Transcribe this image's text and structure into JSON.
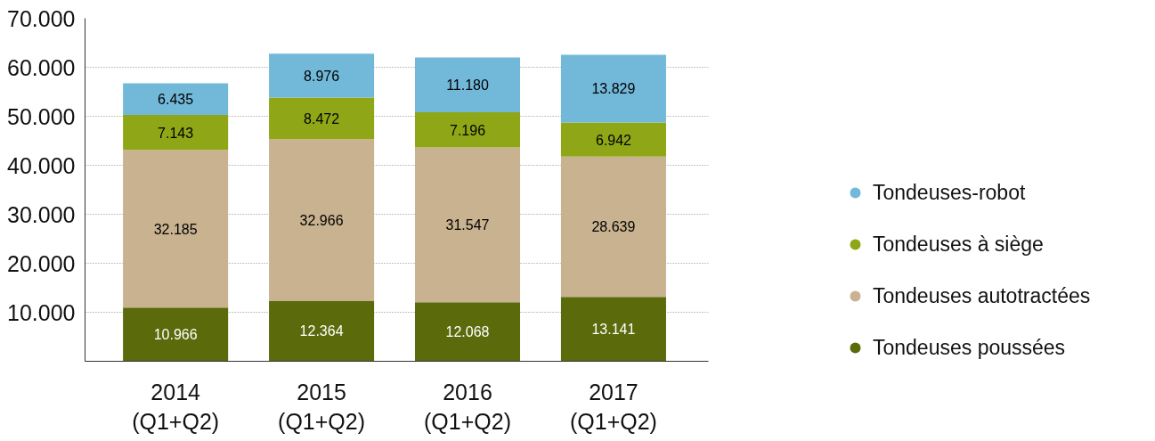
{
  "chart_data": {
    "type": "bar",
    "stacked": true,
    "categories": [
      "2014\n(Q1+Q2)",
      "2015\n(Q1+Q2)",
      "2016\n(Q1+Q2)",
      "2017\n(Q1+Q2)"
    ],
    "series": [
      {
        "name": "Tondeuses poussées",
        "color": "#5b6a0b",
        "values": [
          10966,
          12364,
          12068,
          13141
        ],
        "value_labels": [
          "10.966",
          "12.364",
          "12.068",
          "13.141"
        ]
      },
      {
        "name": "Tondeuses autotractées",
        "color": "#c8b28f",
        "values": [
          32185,
          32966,
          31547,
          28639
        ],
        "value_labels": [
          "32.185",
          "32.966",
          "31.547",
          "28.639"
        ]
      },
      {
        "name": "Tondeuses à siège",
        "color": "#8fa716",
        "values": [
          7143,
          8472,
          7196,
          6942
        ],
        "value_labels": [
          "7.143",
          "8.472",
          "7.196",
          "6.942"
        ]
      },
      {
        "name": "Tondeuses-robot",
        "color": "#72b9d9",
        "values": [
          6435,
          8976,
          11180,
          13829
        ],
        "value_labels": [
          "6.435",
          "8.976",
          "11.180",
          "13.829"
        ]
      }
    ],
    "ylim": [
      0,
      70000
    ],
    "yticks": [
      {
        "value": 10000,
        "label": "10.000"
      },
      {
        "value": 20000,
        "label": "20.000"
      },
      {
        "value": 30000,
        "label": "30.000"
      },
      {
        "value": 40000,
        "label": "40.000"
      },
      {
        "value": 50000,
        "label": "50.000"
      },
      {
        "value": 60000,
        "label": "60.000"
      },
      {
        "value": 70000,
        "label": "70.000"
      }
    ],
    "grid": "y",
    "legend": "right"
  }
}
